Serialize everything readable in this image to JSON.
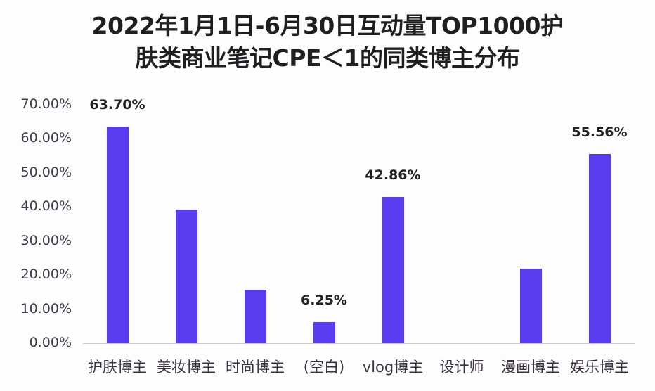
{
  "chart_data": {
    "type": "bar",
    "title": "2022年1月1日-6月30日互动量TOP1000护肤类商业笔记CPE＜1的同类博主分布",
    "title_lines": [
      "2022年1月1日-6月30日互动量TOP1000护",
      "肤类商业笔记CPE＜1的同类博主分布"
    ],
    "xlabel": "",
    "ylabel": "",
    "ylim": [
      0,
      70
    ],
    "y_ticks": [
      "0.00%",
      "10.00%",
      "20.00%",
      "30.00%",
      "40.00%",
      "50.00%",
      "60.00%",
      "70.00%"
    ],
    "categories": [
      "护肤博主",
      "美妆博主",
      "时尚博主",
      "(空白)",
      "vlog博主",
      "设计师",
      "漫画博主",
      "娱乐博主"
    ],
    "values": [
      63.7,
      39.3,
      15.7,
      6.25,
      42.86,
      0,
      21.9,
      55.56
    ],
    "data_labels": [
      "63.70%",
      "",
      "",
      "6.25%",
      "42.86%",
      "",
      "",
      "55.56%"
    ],
    "bar_color": "#5a3cf0",
    "grid": false,
    "legend": "none"
  }
}
